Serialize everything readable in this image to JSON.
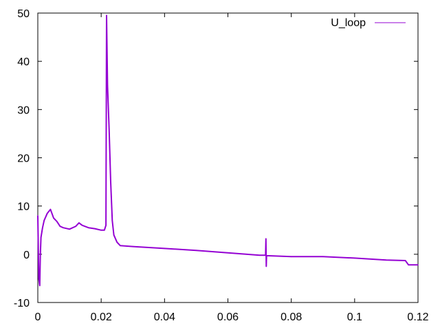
{
  "chart_data": {
    "type": "line",
    "title": "",
    "xlabel": "",
    "ylabel": "",
    "xlim": [
      0,
      0.12
    ],
    "ylim": [
      -10,
      50
    ],
    "grid": false,
    "legend_position": "top-right",
    "x_ticks": [
      "0",
      "0.02",
      "0.04",
      "0.06",
      "0.08",
      "0.1",
      "0.12"
    ],
    "x_tick_values": [
      0,
      0.02,
      0.04,
      0.06,
      0.08,
      0.1,
      0.12
    ],
    "y_ticks": [
      "-10",
      "0",
      "10",
      "20",
      "30",
      "40",
      "50"
    ],
    "y_tick_values": [
      -10,
      0,
      10,
      20,
      30,
      40,
      50
    ],
    "series": [
      {
        "name": "U_loop",
        "color": "#9400d3",
        "x": [
          0.0,
          0.0003,
          0.0006,
          0.0008,
          0.001,
          0.0015,
          0.002,
          0.003,
          0.004,
          0.005,
          0.006,
          0.007,
          0.008,
          0.01,
          0.012,
          0.013,
          0.014,
          0.016,
          0.018,
          0.02,
          0.021,
          0.0215,
          0.0217,
          0.022,
          0.0225,
          0.023,
          0.0235,
          0.024,
          0.025,
          0.026,
          0.03,
          0.04,
          0.05,
          0.06,
          0.07,
          0.0719,
          0.072,
          0.0721,
          0.0722,
          0.08,
          0.09,
          0.1,
          0.11,
          0.116,
          0.117,
          0.12
        ],
        "y": [
          8,
          -5,
          -6.5,
          0,
          3.5,
          5.5,
          7,
          8.5,
          9.3,
          7.5,
          6.8,
          5.8,
          5.5,
          5.2,
          5.8,
          6.5,
          6,
          5.5,
          5.3,
          5,
          5,
          6,
          49.5,
          35,
          26,
          15,
          7,
          4,
          2.5,
          1.8,
          1.6,
          1.2,
          0.8,
          0.3,
          -0.2,
          -0.2,
          3.2,
          -2.5,
          -0.3,
          -0.5,
          -0.5,
          -0.8,
          -1.2,
          -1.3,
          -2.2,
          -2.2
        ]
      }
    ]
  }
}
